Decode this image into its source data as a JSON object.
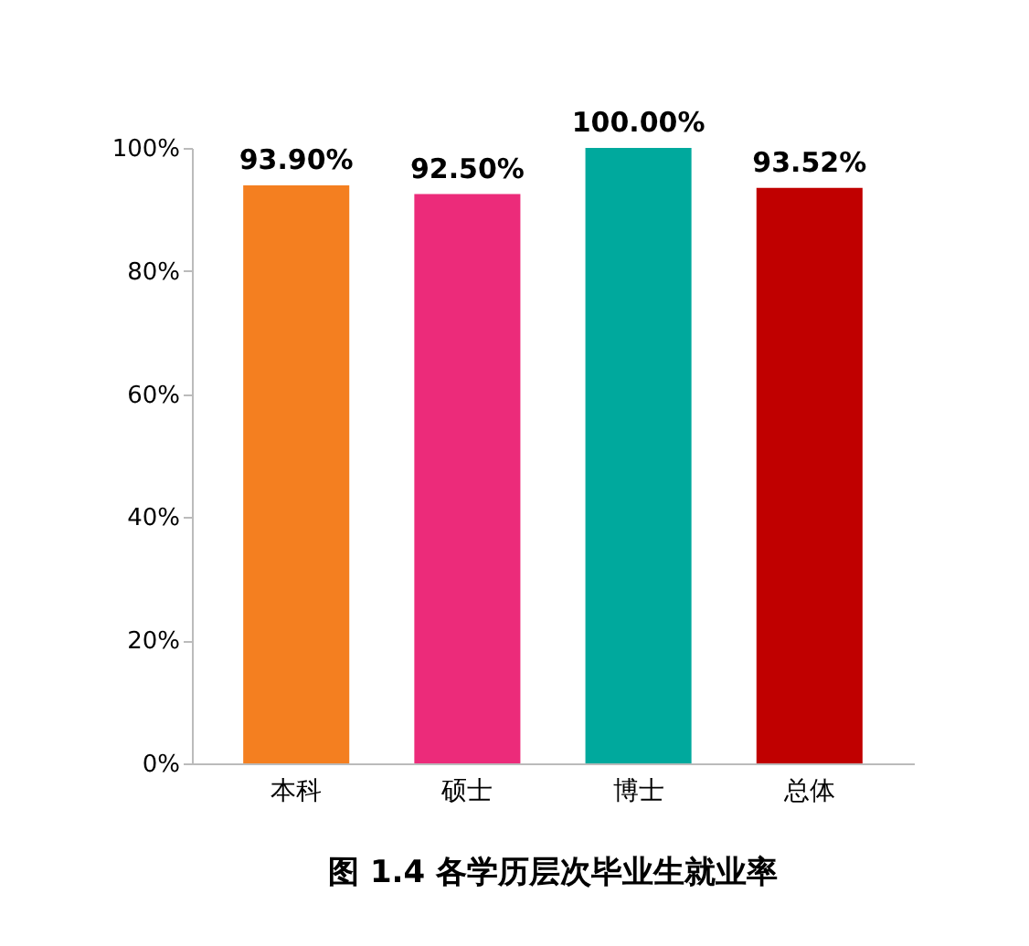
{
  "chart_data": {
    "type": "bar",
    "title": "图 1.4 各学历层次毕业生就业率",
    "categories": [
      "本科",
      "硕士",
      "博士",
      "总体"
    ],
    "values": [
      93.9,
      92.5,
      100.0,
      93.52
    ],
    "colors": [
      "#f47f20",
      "#ec2b7a",
      "#00a99d",
      "#c00000"
    ],
    "value_labels": [
      "93.90%",
      "92.50%",
      "100.00%",
      "93.52%"
    ],
    "ylim": [
      0,
      100
    ],
    "yticks": [
      {
        "value": 0,
        "label": "0%"
      },
      {
        "value": 20,
        "label": "20%"
      },
      {
        "value": 40,
        "label": "40%"
      },
      {
        "value": 60,
        "label": "60%"
      },
      {
        "value": 80,
        "label": "80%"
      },
      {
        "value": 100,
        "label": "100%"
      }
    ],
    "grid": false
  }
}
